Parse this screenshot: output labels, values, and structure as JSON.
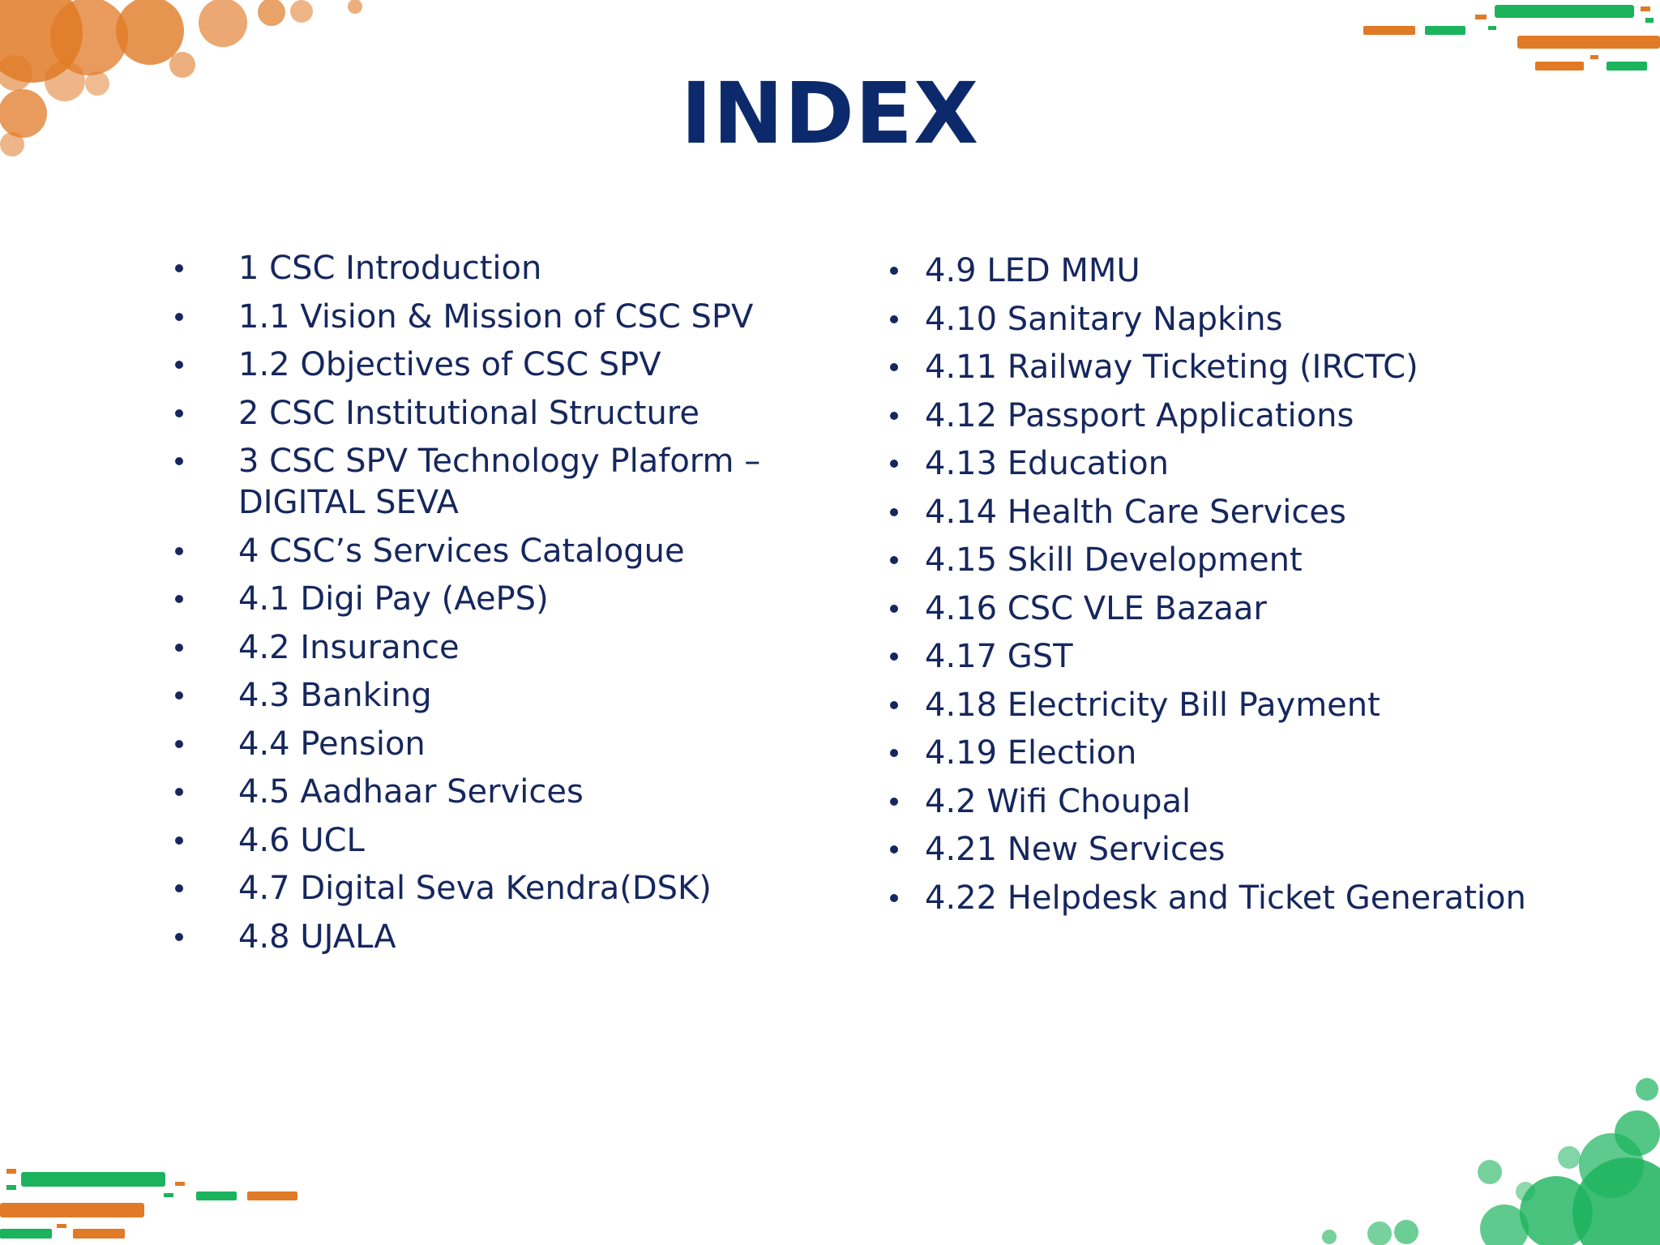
{
  "title": "INDEX",
  "left_items": [
    {
      "label": "1 CSC Introduction"
    },
    {
      "label": "1.1 Vision & Mission of CSC SPV"
    },
    {
      "label": "1.2 Objectives of CSC SPV"
    },
    {
      "label": "2 CSC Institutional Structure"
    },
    {
      "label": "3 CSC SPV Technology Plaform –",
      "label2": "DIGITAL SEVA"
    },
    {
      "label": "4 CSC’s Services Catalogue"
    },
    {
      "label": "4.1 Digi Pay (AePS)"
    },
    {
      "label": "4.2 Insurance"
    },
    {
      "label": "4.3 Banking"
    },
    {
      "label": "4.4 Pension"
    },
    {
      "label": "4.5 Aadhaar Services"
    },
    {
      "label": "4.6 UCL"
    },
    {
      "label": "4.7 Digital Seva Kendra(DSK)"
    },
    {
      "label": "4.8 UJALA"
    }
  ],
  "right_items": [
    {
      "label": "4.9 LED MMU"
    },
    {
      "label": "4.10 Sanitary Napkins"
    },
    {
      "label": "4.11 Railway Ticketing (IRCTC)"
    },
    {
      "label": "4.12 Passport Applications"
    },
    {
      "label": "4.13 Education"
    },
    {
      "label": "4.14 Health Care Services"
    },
    {
      "label": "4.15 Skill Development"
    },
    {
      "label": "4.16 CSC VLE Bazaar"
    },
    {
      "label": "4.17 GST"
    },
    {
      "label": "4.18 Electricity Bill Payment"
    },
    {
      "label": "4.19 Election"
    },
    {
      "label": "4.2 Wifi Choupal"
    },
    {
      "label": "4.21 New Services"
    },
    {
      "label": "4.22 Helpdesk and Ticket Generation"
    }
  ],
  "colors": {
    "title": "#0c2a6b",
    "text": "#16275e",
    "accent_orange": "#e07a26",
    "accent_green": "#1bb35c"
  },
  "decorations": {
    "top_left": "orange-bubbles",
    "top_right": "dash-lines",
    "bottom_left": "dash-lines",
    "bottom_right": "green-bubbles"
  }
}
